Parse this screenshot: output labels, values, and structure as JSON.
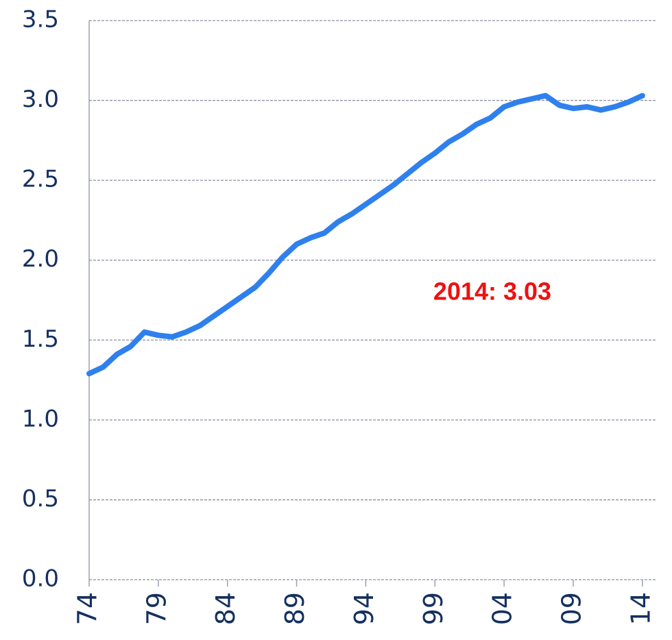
{
  "chart_data": {
    "type": "line",
    "annotation": "2014: 3.03",
    "x": [
      1974,
      1975,
      1976,
      1977,
      1978,
      1979,
      1980,
      1981,
      1982,
      1983,
      1984,
      1985,
      1986,
      1987,
      1988,
      1989,
      1990,
      1991,
      1992,
      1993,
      1994,
      1995,
      1996,
      1997,
      1998,
      1999,
      2000,
      2001,
      2002,
      2003,
      2004,
      2005,
      2006,
      2007,
      2008,
      2009,
      2010,
      2011,
      2012,
      2013,
      2014
    ],
    "series": [
      {
        "color": "#2f80ed",
        "values": [
          1.29,
          1.33,
          1.41,
          1.46,
          1.55,
          1.53,
          1.52,
          1.55,
          1.59,
          1.65,
          1.71,
          1.77,
          1.83,
          1.92,
          2.02,
          2.1,
          2.14,
          2.17,
          2.24,
          2.29,
          2.35,
          2.41,
          2.47,
          2.54,
          2.61,
          2.67,
          2.74,
          2.79,
          2.85,
          2.89,
          2.96,
          2.99,
          3.01,
          3.03,
          2.97,
          2.95,
          2.96,
          2.94,
          2.96,
          2.99,
          3.03
        ]
      }
    ],
    "xlim": [
      1974,
      2015
    ],
    "xticks": [
      {
        "value": 1974,
        "label": "74"
      },
      {
        "value": 1979,
        "label": "79"
      },
      {
        "value": 1984,
        "label": "84"
      },
      {
        "value": 1989,
        "label": "89"
      },
      {
        "value": 1994,
        "label": "94"
      },
      {
        "value": 1999,
        "label": "99"
      },
      {
        "value": 2004,
        "label": "04"
      },
      {
        "value": 2009,
        "label": "09"
      },
      {
        "value": 2014,
        "label": "14"
      }
    ],
    "ylim": [
      0,
      3.5
    ],
    "yticks": [
      {
        "value": 0,
        "label": "0.0"
      },
      0.5,
      {
        "value": 1,
        "label": "1.0"
      },
      1.5,
      {
        "value": 2,
        "label": "2.0"
      },
      2.5,
      {
        "value": 3,
        "label": "3.0"
      },
      3.5
    ],
    "grid": true
  }
}
